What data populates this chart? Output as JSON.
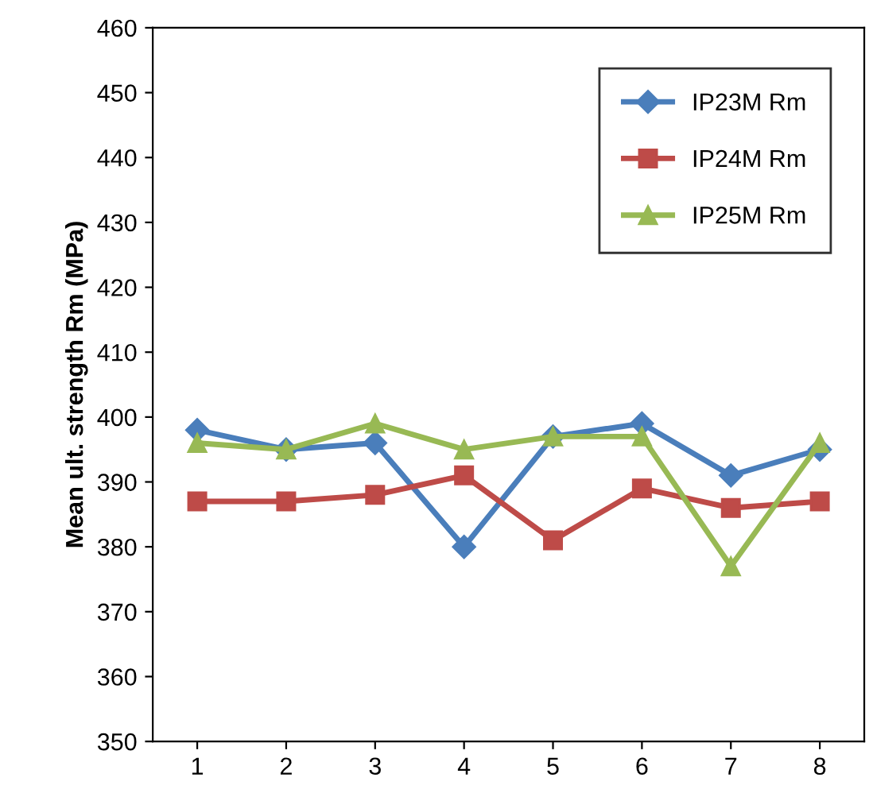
{
  "chart_data": {
    "type": "line",
    "ylabel": "Mean ult. strength Rm (MPa)",
    "categories": [
      "1",
      "2",
      "3",
      "4",
      "5",
      "6",
      "7",
      "8"
    ],
    "series": [
      {
        "name": "IP23M Rm",
        "color": "#4a7ebb",
        "marker": "diamond",
        "values": [
          398,
          395,
          396,
          380,
          397,
          399,
          391,
          395
        ]
      },
      {
        "name": "IP24M Rm",
        "color": "#be4b48",
        "marker": "square",
        "values": [
          387,
          387,
          388,
          391,
          381,
          389,
          386,
          387
        ]
      },
      {
        "name": "IP25M Rm",
        "color": "#98b954",
        "marker": "triangle",
        "values": [
          396,
          395,
          399,
          395,
          397,
          397,
          377,
          396
        ]
      }
    ],
    "ylim": [
      350,
      460
    ],
    "yticks": [
      350,
      360,
      370,
      380,
      390,
      400,
      410,
      420,
      430,
      440,
      450,
      460
    ],
    "grid": false,
    "legend": "top right",
    "line_style": "solid"
  }
}
